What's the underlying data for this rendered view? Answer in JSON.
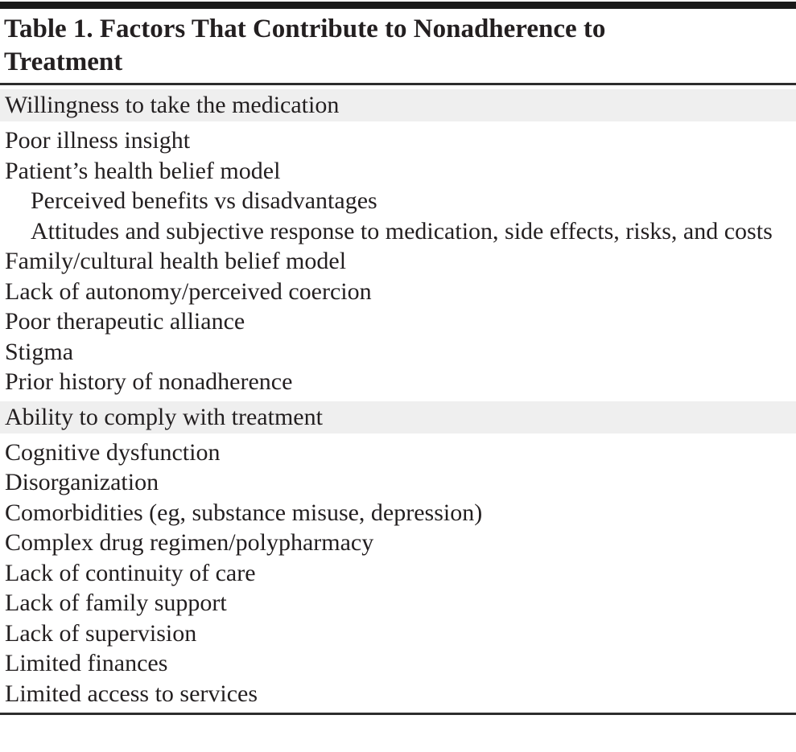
{
  "table": {
    "title": "Table 1. Factors That Contribute to Nonadherence to Treatment",
    "sections": [
      {
        "header": "Willingness to take the medication",
        "items": [
          {
            "text": "Poor illness insight",
            "indent": 0
          },
          {
            "text": "Patient’s health belief model",
            "indent": 0
          },
          {
            "text": "Perceived benefits vs disadvantages",
            "indent": 1
          },
          {
            "text": "Attitudes and subjective response to medication, side effects, risks, and costs",
            "indent": 1
          },
          {
            "text": "Family/cultural health belief model",
            "indent": 0
          },
          {
            "text": "Lack of autonomy/perceived coercion",
            "indent": 0
          },
          {
            "text": "Poor therapeutic alliance",
            "indent": 0
          },
          {
            "text": "Stigma",
            "indent": 0
          },
          {
            "text": "Prior history of nonadherence",
            "indent": 0
          }
        ]
      },
      {
        "header": "Ability to comply with treatment",
        "items": [
          {
            "text": "Cognitive dysfunction",
            "indent": 0
          },
          {
            "text": "Disorganization",
            "indent": 0
          },
          {
            "text": "Comorbidities (eg, substance misuse, depression)",
            "indent": 0
          },
          {
            "text": "Complex drug regimen/polypharmacy",
            "indent": 0
          },
          {
            "text": "Lack of continuity of care",
            "indent": 0
          },
          {
            "text": "Lack of family support",
            "indent": 0
          },
          {
            "text": "Lack of supervision",
            "indent": 0
          },
          {
            "text": "Limited finances",
            "indent": 0
          },
          {
            "text": "Limited access to services",
            "indent": 0
          }
        ]
      }
    ],
    "colors": {
      "text": "#231f20",
      "section_header_bg": "#efefef",
      "top_bar": "#191919",
      "rule": "#2d2d2d",
      "background": "#ffffff"
    }
  }
}
